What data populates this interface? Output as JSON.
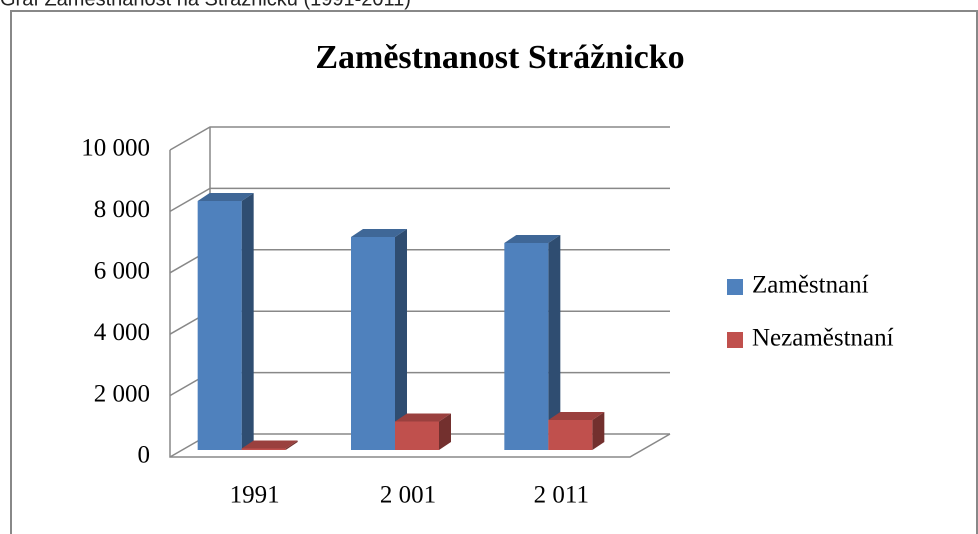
{
  "caption": "Graf Zaměstnanost na Strážnicku (1991-2011)",
  "chart_data": {
    "type": "bar3d",
    "title": "Zaměstnanost  Strážnicko",
    "categories": [
      "1991",
      "2 001",
      "2 011"
    ],
    "series": [
      {
        "name": "Zaměstnaní",
        "color": "#4f81bd",
        "values": [
          8300,
          7100,
          6900
        ]
      },
      {
        "name": "Nezaměstnaní",
        "color": "#c0504d",
        "values": [
          50,
          950,
          1000
        ]
      }
    ],
    "ylim": [
      0,
      10000
    ],
    "yticks": [
      0,
      {
        "value": 2000,
        "label": "2 000"
      },
      {
        "value": 4000,
        "label": "4 000"
      },
      {
        "value": 6000,
        "label": "6 000"
      },
      {
        "value": 8000,
        "label": "8 000"
      },
      {
        "value": 10000,
        "label": "10 000"
      }
    ],
    "grid": true,
    "legend": "right"
  }
}
